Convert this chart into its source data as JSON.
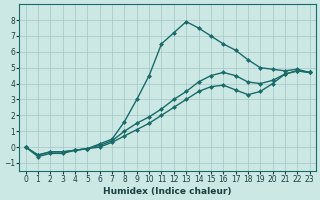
{
  "xlabel": "Humidex (Indice chaleur)",
  "xlim": [
    -0.5,
    23.5
  ],
  "ylim": [
    -1.5,
    9.0
  ],
  "xticks": [
    0,
    1,
    2,
    3,
    4,
    5,
    6,
    7,
    8,
    9,
    10,
    11,
    12,
    13,
    14,
    15,
    16,
    17,
    18,
    19,
    20,
    21,
    22,
    23
  ],
  "yticks": [
    -1,
    0,
    1,
    2,
    3,
    4,
    5,
    6,
    7,
    8
  ],
  "bg_color": "#cce8e5",
  "grid_color": "#aaccca",
  "line_color": "#1a6b68",
  "line1_x": [
    0,
    1,
    2,
    3,
    4,
    5,
    6,
    7,
    8,
    9,
    10,
    11,
    12,
    13,
    14,
    15,
    16,
    17,
    18,
    19,
    20,
    21,
    22,
    23
  ],
  "line1_y": [
    0.0,
    -0.6,
    -0.4,
    -0.4,
    -0.2,
    -0.1,
    0.2,
    0.5,
    1.6,
    3.0,
    4.5,
    6.5,
    7.2,
    7.9,
    7.5,
    7.0,
    6.5,
    6.1,
    5.5,
    5.0,
    4.9,
    4.8,
    4.9,
    4.7
  ],
  "line2_x": [
    0,
    1,
    2,
    3,
    4,
    5,
    6,
    7,
    8,
    9,
    10,
    11,
    12,
    13,
    14,
    15,
    16,
    17,
    18,
    19,
    20,
    21,
    22,
    23
  ],
  "line2_y": [
    0.0,
    -0.5,
    -0.3,
    -0.3,
    -0.2,
    -0.1,
    0.1,
    0.4,
    1.0,
    1.5,
    1.9,
    2.4,
    3.0,
    3.5,
    4.1,
    4.5,
    4.7,
    4.5,
    4.1,
    4.0,
    4.2,
    4.6,
    4.8,
    4.7
  ],
  "line3_x": [
    0,
    1,
    2,
    3,
    4,
    5,
    6,
    7,
    8,
    9,
    10,
    11,
    12,
    13,
    14,
    15,
    16,
    17,
    18,
    19,
    20,
    21,
    22,
    23
  ],
  "line3_y": [
    0.0,
    -0.5,
    -0.3,
    -0.3,
    -0.2,
    -0.1,
    0.0,
    0.3,
    0.7,
    1.1,
    1.5,
    2.0,
    2.5,
    3.0,
    3.5,
    3.8,
    3.9,
    3.6,
    3.3,
    3.5,
    4.0,
    4.6,
    4.8,
    4.7
  ]
}
